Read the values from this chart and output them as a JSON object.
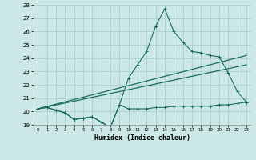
{
  "title": "",
  "xlabel": "Humidex (Indice chaleur)",
  "background_color": "#cce8e6",
  "grid_color": "#aacfcd",
  "line_color": "#1a6b5e",
  "xlim": [
    -0.5,
    23.5
  ],
  "ylim": [
    19,
    28
  ],
  "xticks": [
    0,
    1,
    2,
    3,
    4,
    5,
    6,
    7,
    8,
    9,
    10,
    11,
    12,
    13,
    14,
    15,
    16,
    17,
    18,
    19,
    20,
    21,
    22,
    23
  ],
  "yticks": [
    19,
    20,
    21,
    22,
    23,
    24,
    25,
    26,
    27,
    28
  ],
  "series_main_x": [
    0,
    1,
    2,
    3,
    4,
    5,
    6,
    7,
    8,
    9,
    10,
    11,
    12,
    13,
    14,
    15,
    16,
    17,
    18,
    19,
    20,
    21,
    22,
    23
  ],
  "series_main_y": [
    20.2,
    20.3,
    20.1,
    19.9,
    19.4,
    19.5,
    19.6,
    19.2,
    18.8,
    20.5,
    22.5,
    23.5,
    24.5,
    26.4,
    27.7,
    26.0,
    25.2,
    24.5,
    24.4,
    24.2,
    24.1,
    22.9,
    21.5,
    20.7
  ],
  "series_flat_x": [
    0,
    1,
    2,
    3,
    4,
    5,
    6,
    7,
    8,
    9,
    10,
    11,
    12,
    13,
    14,
    15,
    16,
    17,
    18,
    19,
    20,
    21,
    22,
    23
  ],
  "series_flat_y": [
    20.2,
    20.3,
    20.1,
    19.9,
    19.4,
    19.5,
    19.6,
    19.2,
    18.8,
    20.5,
    20.2,
    20.2,
    20.2,
    20.3,
    20.3,
    20.4,
    20.4,
    20.4,
    20.4,
    20.4,
    20.5,
    20.5,
    20.6,
    20.7
  ],
  "line1_x": [
    0,
    23
  ],
  "line1_y": [
    20.2,
    24.2
  ],
  "line2_x": [
    0,
    23
  ],
  "line2_y": [
    20.2,
    23.5
  ]
}
